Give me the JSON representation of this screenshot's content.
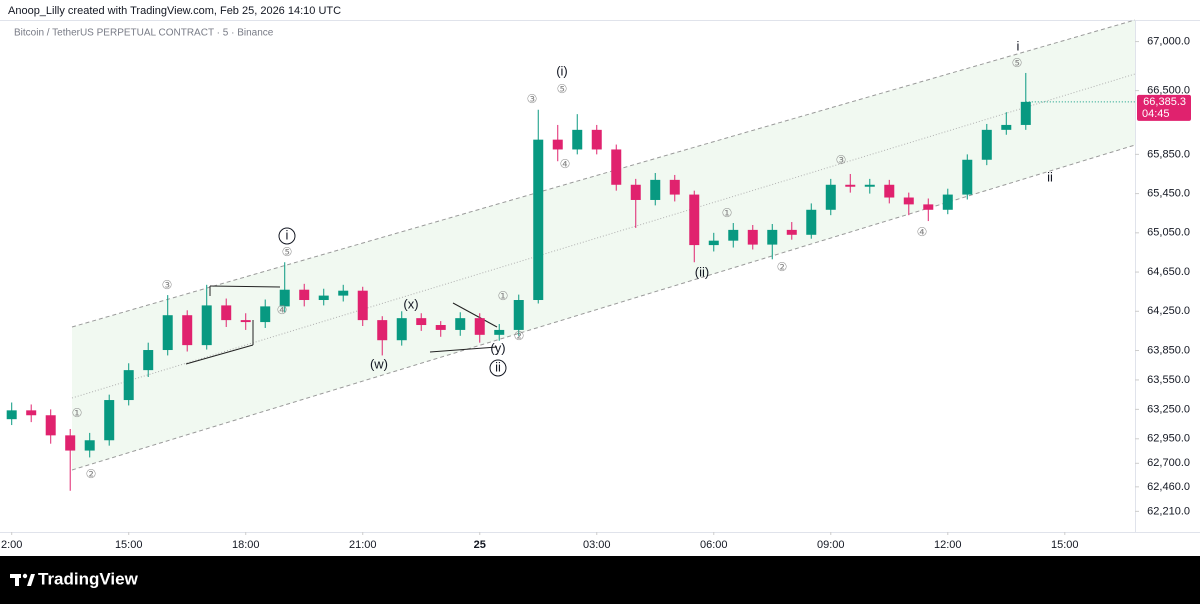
{
  "header": {
    "text": "Anoop_Lilly created with TradingView.com, Feb 25, 2026 14:10 UTC"
  },
  "footer": {
    "brand": "TradingView"
  },
  "chart_data": {
    "type": "candlestick",
    "title": "Bitcoin / TetherUS PERPETUAL CONTRACT · 5 · Binance",
    "x": [
      0,
      0.5,
      1,
      1.5,
      2,
      2.5,
      3,
      3.5,
      4,
      4.5,
      5,
      5.5,
      6,
      6.5,
      7,
      7.5,
      8,
      8.5,
      9,
      9.5,
      10,
      10.5,
      11,
      11.5,
      12,
      12.5,
      13,
      13.5,
      14,
      14.5,
      15,
      15.5,
      16,
      16.5,
      17,
      17.5,
      18,
      18.5,
      19,
      19.5,
      20,
      20.5,
      21,
      21.5,
      22,
      22.5,
      23,
      23.5,
      24,
      24.5,
      25,
      25.5,
      26
    ],
    "open": [
      63150,
      63240,
      63190,
      62985,
      62830,
      62935,
      63345,
      63650,
      63855,
      64210,
      63905,
      64310,
      64160,
      64140,
      64300,
      64470,
      64365,
      64410,
      64460,
      64160,
      63955,
      64180,
      64110,
      64060,
      64180,
      64010,
      64060,
      64365,
      66000,
      65900,
      66100,
      65900,
      65540,
      65385,
      65590,
      65440,
      64925,
      64970,
      65080,
      64930,
      65080,
      65030,
      65285,
      65540,
      65520,
      65540,
      65410,
      65340,
      65285,
      65440,
      65795,
      66100,
      66150
    ],
    "high": [
      63320,
      63300,
      63250,
      63050,
      63010,
      63400,
      63720,
      63930,
      64415,
      64260,
      64520,
      64380,
      64230,
      64370,
      64750,
      64530,
      64480,
      64520,
      64500,
      64200,
      64250,
      64230,
      64150,
      64240,
      64230,
      64120,
      64420,
      66305,
      66150,
      66260,
      66150,
      65950,
      65600,
      65660,
      65640,
      65480,
      65050,
      65150,
      65130,
      65140,
      65160,
      65350,
      65600,
      65650,
      65600,
      65590,
      65460,
      65400,
      65500,
      65850,
      66160,
      66280,
      66680
    ],
    "low": [
      63090,
      63120,
      62900,
      62420,
      62760,
      62880,
      63290,
      63580,
      63800,
      63840,
      63860,
      64090,
      64060,
      64080,
      64240,
      64300,
      64310,
      64350,
      64100,
      63800,
      63900,
      64050,
      63990,
      64000,
      63930,
      63950,
      64000,
      64330,
      65780,
      65850,
      65850,
      65480,
      65100,
      65330,
      65370,
      64750,
      64860,
      64900,
      64880,
      64780,
      64980,
      64990,
      65230,
      65460,
      65450,
      65350,
      65230,
      65170,
      65240,
      65390,
      65740,
      66050,
      66100
    ],
    "close": [
      63240,
      63190,
      62985,
      62830,
      62935,
      63345,
      63650,
      63855,
      64210,
      63905,
      64310,
      64160,
      64140,
      64300,
      64470,
      64365,
      64410,
      64460,
      64160,
      63955,
      64180,
      64110,
      64060,
      64180,
      64010,
      64060,
      64365,
      66000,
      65900,
      66100,
      65900,
      65540,
      65385,
      65590,
      65440,
      64925,
      64970,
      65080,
      64930,
      65080,
      65030,
      65285,
      65540,
      65520,
      65540,
      65410,
      65340,
      65285,
      65440,
      65795,
      66100,
      66150,
      66385.3
    ],
    "up_color": "#089981",
    "down_color": "#e0226e",
    "xlim": [
      -0.3,
      28.8
    ],
    "xticks": [
      {
        "value": 0,
        "label": "2:00"
      },
      {
        "value": 3,
        "label": "15:00"
      },
      {
        "value": 6,
        "label": "18:00"
      },
      {
        "value": 9,
        "label": "21:00"
      },
      {
        "value": 12,
        "label": "25"
      },
      {
        "value": 15,
        "label": "03:00"
      },
      {
        "value": 18,
        "label": "06:00"
      },
      {
        "value": 21,
        "label": "09:00"
      },
      {
        "value": 24,
        "label": "12:00"
      },
      {
        "value": 27,
        "label": "15:00"
      }
    ],
    "ylim": [
      62020,
      67220
    ],
    "yticks": [
      {
        "value": 67000,
        "label": "67,000.0"
      },
      {
        "value": 66500,
        "label": "66,500.0"
      },
      {
        "value": 65850,
        "label": "65,850.0"
      },
      {
        "value": 65450,
        "label": "65,450.0"
      },
      {
        "value": 65050,
        "label": "65,050.0"
      },
      {
        "value": 64650,
        "label": "64,650.0"
      },
      {
        "value": 64250,
        "label": "64,250.0"
      },
      {
        "value": 63850,
        "label": "63,850.0"
      },
      {
        "value": 63550,
        "label": "63,550.0"
      },
      {
        "value": 63250,
        "label": "63,250.0"
      },
      {
        "value": 62950,
        "label": "62,950.0"
      },
      {
        "value": 62700,
        "label": "62,700.0"
      },
      {
        "value": 62460,
        "label": "62,460.0"
      },
      {
        "value": 62210,
        "label": "62,210.0"
      }
    ],
    "grid": false,
    "last_price": {
      "value": 66385.3,
      "label": "66,385.3"
    },
    "countdown": "04:45",
    "annotations": [
      {
        "text": "i",
        "circled": false
      },
      {
        "text": "⑤",
        "circled": false
      },
      {
        "text": "(i)",
        "circled": false
      },
      {
        "text": "⑤",
        "circled": false
      },
      {
        "text": "③",
        "circled": false
      },
      {
        "text": "④",
        "circled": false
      },
      {
        "text": "③",
        "circled": false
      },
      {
        "text": "ii",
        "circled": false
      },
      {
        "text": "①",
        "circled": false
      },
      {
        "text": "④",
        "circled": false
      },
      {
        "text": "(ii)",
        "circled": false
      },
      {
        "text": "②",
        "circled": false
      },
      {
        "text": "i",
        "circled": true
      },
      {
        "text": "⑤",
        "circled": false
      },
      {
        "text": "③",
        "circled": false
      },
      {
        "text": "④",
        "circled": false
      },
      {
        "text": "(x)",
        "circled": false
      },
      {
        "text": "①",
        "circled": false
      },
      {
        "text": "②",
        "circled": false
      },
      {
        "text": "(w)",
        "circled": false
      },
      {
        "text": "(y)",
        "circled": false
      },
      {
        "text": "ii",
        "circled": true
      },
      {
        "text": "①",
        "circled": false
      },
      {
        "text": "②",
        "circled": false
      }
    ]
  }
}
